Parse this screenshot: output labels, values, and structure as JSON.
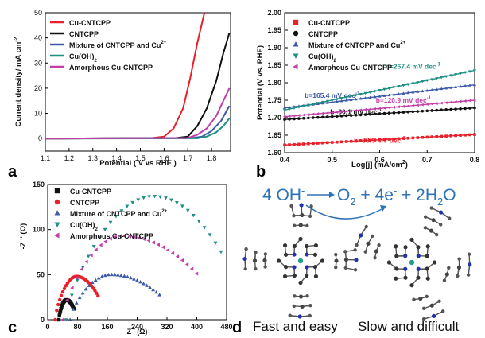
{
  "figure": {
    "panel_labels": [
      "a",
      "b",
      "c",
      "d"
    ],
    "panel_d": {
      "reaction": {
        "reactant": "4 OH",
        "reactant_sup": "-",
        "p1": "O",
        "p1_sub": "2",
        "p2": " + 4e",
        "p2_sup": "-",
        "p3": " + 2H",
        "p3_sub": "2",
        "p4": "O"
      },
      "left_caption": "Fast and easy",
      "right_caption": "Slow and difficult"
    }
  },
  "chart_data": [
    {
      "type": "line",
      "panel": "a",
      "xlabel": "Potential ( V vs RHE )",
      "ylabel": "Current density/ mA cm",
      "ylabel_sup": "-2",
      "xlim": [
        1.1,
        1.88
      ],
      "ylim": [
        -5,
        50
      ],
      "xticks": [
        "1.1",
        "1.2",
        "1.3",
        "1.4",
        "1.5",
        "1.6",
        "1.7",
        "1.8"
      ],
      "xtick_values": [
        1.1,
        1.2,
        1.3,
        1.4,
        1.5,
        1.6,
        1.7,
        1.8
      ],
      "yticks": [
        "0",
        "10",
        "20",
        "30",
        "40",
        "50"
      ],
      "ytick_values": [
        0,
        10,
        20,
        30,
        40,
        50
      ],
      "legend_position": "top-left",
      "series": [
        {
          "name": "Cu-CNTCPP",
          "color": "#e8202a",
          "x": [
            1.1,
            1.55,
            1.6,
            1.64,
            1.68,
            1.71,
            1.74,
            1.77
          ],
          "y": [
            0,
            0.2,
            0.8,
            4,
            12,
            24,
            38,
            50
          ]
        },
        {
          "name": "CNTCPP",
          "color": "#111111",
          "x": [
            1.1,
            1.65,
            1.7,
            1.74,
            1.78,
            1.82,
            1.85,
            1.875
          ],
          "y": [
            0,
            0.2,
            0.8,
            5,
            12,
            23,
            34,
            42
          ]
        },
        {
          "name": "Mixture of CNTCPP and Cu",
          "name_sup": "2+",
          "color": "#3c5aa8",
          "x": [
            1.1,
            1.72,
            1.76,
            1.8,
            1.84,
            1.875
          ],
          "y": [
            0,
            0.2,
            0.8,
            3,
            7,
            13
          ]
        },
        {
          "name": "Cu(OH)",
          "name_sub": "2",
          "color": "#1f8f84",
          "x": [
            1.1,
            1.74,
            1.78,
            1.82,
            1.85,
            1.875
          ],
          "y": [
            0,
            0.1,
            0.8,
            2.5,
            5,
            8
          ]
        },
        {
          "name": "Amorphous Cu-CNTCPP",
          "color": "#c23fa8",
          "x": [
            1.1,
            1.7,
            1.74,
            1.78,
            1.82,
            1.85,
            1.875
          ],
          "y": [
            0,
            0.2,
            1.5,
            4,
            9,
            15,
            20
          ]
        }
      ]
    },
    {
      "type": "scatter",
      "panel": "b",
      "xlabel": "Log[j] (mA/cm",
      "xlabel_sup": "2",
      "xlabel_end": ")",
      "ylabel": "Potential (V vs. RHE)",
      "xlim": [
        0.4,
        0.8
      ],
      "ylim": [
        1.6,
        2.0
      ],
      "xticks": [
        "0.4",
        "0.5",
        "0.6",
        "0.7",
        "0.8"
      ],
      "xtick_values": [
        0.4,
        0.5,
        0.6,
        0.7,
        0.8
      ],
      "yticks": [
        "1.60",
        "1.65",
        "1.70",
        "1.75",
        "1.80",
        "1.85",
        "1.90",
        "1.95",
        "2.00"
      ],
      "ytick_values": [
        1.6,
        1.65,
        1.7,
        1.75,
        1.8,
        1.85,
        1.9,
        1.95,
        2.0
      ],
      "legend_position": "top-left",
      "series": [
        {
          "name": "Cu-CNTCPP",
          "color": "#e8202a",
          "marker": "square",
          "slope_label": "b=83.9 mV dec",
          "slope_sup": "-1",
          "y_at_start": 1.622,
          "y_at_end": 1.652
        },
        {
          "name": "CNTCPP",
          "color": "#111111",
          "marker": "circle",
          "slope_label": "b=90.1 mV dec",
          "slope_sup": "-1",
          "y_at_start": 1.695,
          "y_at_end": 1.728
        },
        {
          "name": "Mixture of CNTCPP and Cu",
          "name_sup": "2+",
          "color": "#3c5aa8",
          "marker": "triangle",
          "slope_label": "b=165.4 mV dec",
          "slope_sup": "-1",
          "y_at_start": 1.728,
          "y_at_end": 1.794
        },
        {
          "name": "Cu(OH)",
          "name_sub": "2",
          "color": "#1f8f84",
          "marker": "triangle-down",
          "slope_label": "b=267.4 mV dec",
          "slope_sup": "-1",
          "y_at_start": 1.722,
          "y_at_end": 1.835
        },
        {
          "name": "Amorphous Cu-CNTCPP",
          "color": "#c23fa8",
          "marker": "triangle-left",
          "slope_label": "b=120.9 mV dec",
          "slope_sup": "-1",
          "y_at_start": 1.703,
          "y_at_end": 1.75
        }
      ]
    },
    {
      "type": "scatter",
      "panel": "c",
      "xlabel": "Z ' (Ω)",
      "ylabel": "-Z '' (Ω)",
      "xlim": [
        0,
        480
      ],
      "ylim": [
        0,
        150
      ],
      "xticks": [
        "0",
        "80",
        "160",
        "240",
        "320",
        "400",
        "480"
      ],
      "xtick_values": [
        0,
        80,
        160,
        240,
        320,
        400,
        480
      ],
      "yticks": [
        "0",
        "50",
        "100",
        "150"
      ],
      "ytick_values": [
        0,
        50,
        100,
        150
      ],
      "legend_position": "top-left",
      "series": [
        {
          "name": "Cu-CNTCPP",
          "color": "#111111",
          "marker": "square",
          "x0": 30,
          "x1": 70,
          "h": 22
        },
        {
          "name": "CNTCPP",
          "color": "#e8202a",
          "marker": "circle",
          "x0": 20,
          "x1": 135,
          "h": 48
        },
        {
          "name": "Mixture of CNTCPP and Cu",
          "name_sup": "2+",
          "color": "#3c5aa8",
          "marker": "triangle",
          "x0": 60,
          "x1": 300,
          "h": 50,
          "x_peak": 170
        },
        {
          "name": "Cu(OH)",
          "name_sub": "2",
          "color": "#1f8f84",
          "marker": "triangle-down",
          "x0": 50,
          "x1": 465,
          "h": 137,
          "x_peak": 285
        },
        {
          "name": "Amorphous Cu-CNTCPP",
          "color": "#c23fa8",
          "marker": "triangle-left",
          "x0": 40,
          "x1": 400,
          "h": 93,
          "x_peak": 200
        }
      ]
    }
  ]
}
